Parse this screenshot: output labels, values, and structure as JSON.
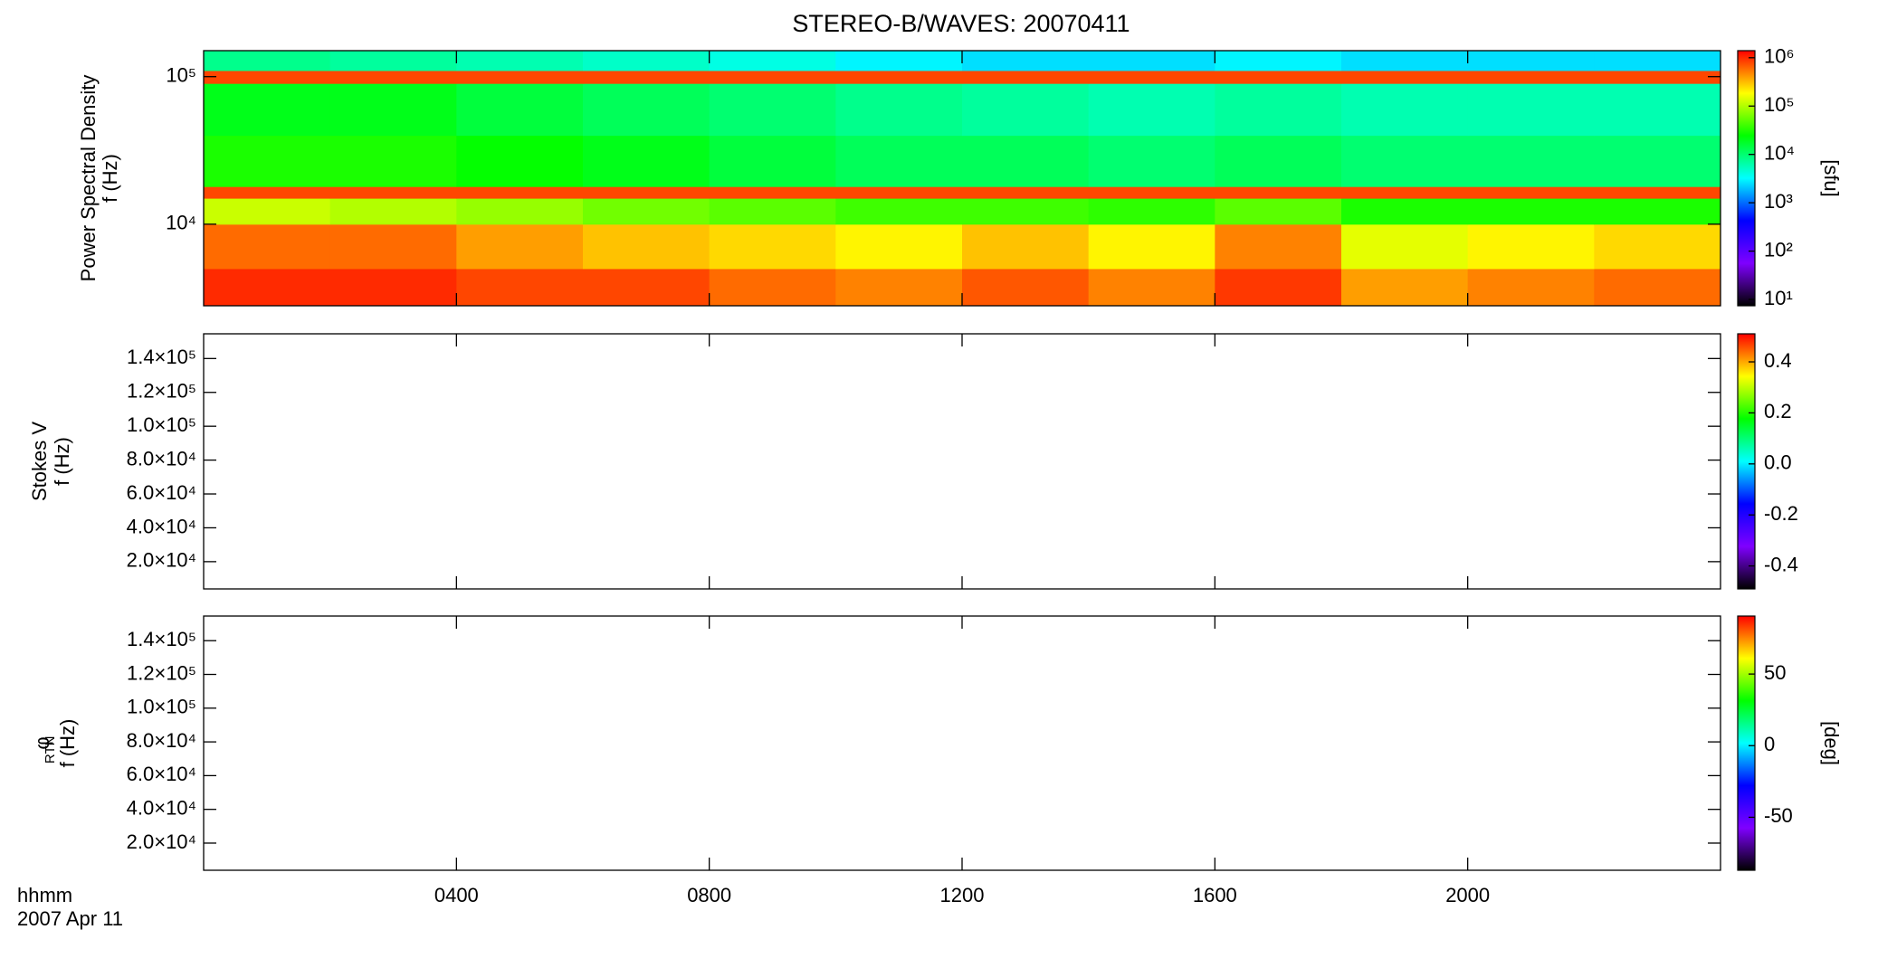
{
  "chart_data": [
    {
      "type": "heatmap",
      "title": "STEREO-B/WAVES: 20070411",
      "ylabel": [
        "Power Spectral Density",
        "f (Hz)"
      ],
      "ylim": [
        2800,
        150000
      ],
      "ylog": true,
      "yticks": [
        {
          "value": 10000,
          "label": "10⁴"
        },
        {
          "value": 100000,
          "label": "10⁵"
        }
      ],
      "clim": [
        7.4,
        1400000
      ],
      "clog": true,
      "cticks": [
        {
          "value": 10,
          "label": "10¹"
        },
        {
          "value": 100,
          "label": "10²"
        },
        {
          "value": 1000,
          "label": "10³"
        },
        {
          "value": 10000,
          "label": "10⁴"
        },
        {
          "value": 100000,
          "label": "10⁵"
        },
        {
          "value": 1000000,
          "label": "10⁶"
        }
      ],
      "clabel": "[sfu]",
      "colormap": [
        "#000000",
        "#7f00ff",
        "#0000ff",
        "#00ffff",
        "#00ff00",
        "#ffff00",
        "#ff0000"
      ],
      "x_bins": [
        0,
        2,
        4,
        6,
        8,
        10,
        12,
        14,
        16,
        18,
        20,
        22,
        24
      ],
      "y_bins": [
        2800,
        5000,
        10000,
        15000,
        18000,
        40000,
        90000,
        110000,
        150000
      ],
      "z": [
        [
          1000000,
          1000000,
          800000,
          800000,
          600000,
          500000,
          700000,
          500000,
          900000,
          400000,
          500000,
          600000
        ],
        [
          600000,
          600000,
          400000,
          300000,
          250000,
          200000,
          300000,
          200000,
          500000,
          150000,
          200000,
          250000
        ],
        [
          120000,
          100000,
          80000,
          60000,
          50000,
          40000,
          40000,
          35000,
          50000,
          30000,
          30000,
          30000
        ],
        [
          800000,
          800000,
          800000,
          800000,
          800000,
          800000,
          800000,
          800000,
          800000,
          800000,
          800000,
          800000
        ],
        [
          30000,
          30000,
          25000,
          20000,
          15000,
          12000,
          12000,
          10000,
          12000,
          10000,
          10000,
          10000
        ],
        [
          20000,
          20000,
          15000,
          12000,
          10000,
          8000,
          7000,
          6000,
          7000,
          6000,
          6000,
          6000
        ],
        [
          800000,
          800000,
          800000,
          800000,
          800000,
          800000,
          800000,
          800000,
          800000,
          800000,
          800000,
          800000
        ],
        [
          8000,
          7000,
          6000,
          5000,
          4000,
          3000,
          2500,
          2500,
          3000,
          2500,
          2500,
          2500
        ]
      ]
    },
    {
      "type": "heatmap",
      "ylabel": [
        "Stokes V",
        "f (Hz)"
      ],
      "ylim": [
        3900,
        154600
      ],
      "yticks": [
        {
          "value": 20000,
          "label": "2.0×10⁴"
        },
        {
          "value": 40000,
          "label": "4.0×10⁴"
        },
        {
          "value": 60000,
          "label": "6.0×10⁴"
        },
        {
          "value": 80000,
          "label": "8.0×10⁴"
        },
        {
          "value": 100000,
          "label": "1.0×10⁵"
        },
        {
          "value": 120000,
          "label": "1.2×10⁵"
        },
        {
          "value": 140000,
          "label": "1.4×10⁵"
        }
      ],
      "clim": [
        -0.49,
        0.51
      ],
      "cticks": [
        -0.4,
        -0.2,
        {
          "value": 0,
          "label": "0.0"
        },
        0.2,
        0.4
      ],
      "colormap": [
        "#000000",
        "#7f00ff",
        "#0000ff",
        "#00ffff",
        "#00ff00",
        "#ffff00",
        "#ff0000"
      ]
    },
    {
      "type": "heatmap",
      "ylabel": [
        "φ",
        "f (Hz)"
      ],
      "ylabel_subscript": "RTN",
      "ylim": [
        3900,
        154600
      ],
      "yticks": [
        {
          "value": 20000,
          "label": "2.0×10⁴"
        },
        {
          "value": 40000,
          "label": "4.0×10⁴"
        },
        {
          "value": 60000,
          "label": "6.0×10⁴"
        },
        {
          "value": 80000,
          "label": "8.0×10⁴"
        },
        {
          "value": 100000,
          "label": "1.0×10⁵"
        },
        {
          "value": 120000,
          "label": "1.2×10⁵"
        },
        {
          "value": 140000,
          "label": "1.4×10⁵"
        }
      ],
      "clim": [
        -87,
        90.5
      ],
      "cticks": [
        -50,
        0,
        50
      ],
      "clabel": "[deg]",
      "colormap": [
        "#000000",
        "#7f00ff",
        "#0000ff",
        "#00ffff",
        "#00ff00",
        "#ffff00",
        "#ff0000"
      ],
      "xlim": [
        0,
        24
      ],
      "xticks": [
        {
          "value": 4,
          "label": "0400"
        },
        {
          "value": 8,
          "label": "0800"
        },
        {
          "value": 12,
          "label": "1200"
        },
        {
          "value": 16,
          "label": "1600"
        },
        {
          "value": 20,
          "label": "2000"
        }
      ],
      "xlabel": "hhmm",
      "date": "2007 Apr 11"
    }
  ]
}
